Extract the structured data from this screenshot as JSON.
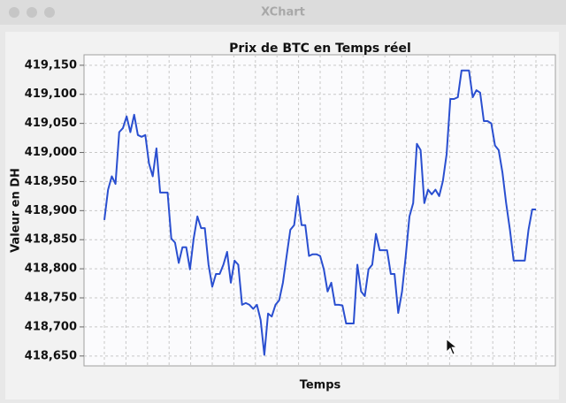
{
  "window": {
    "title": "XChart"
  },
  "chart_data": {
    "type": "line",
    "title": "Prix de BTC en Temps réel",
    "x_label": "Temps",
    "y_label": "Valeur en DH",
    "color": "#2a4fd0",
    "grid": true,
    "ylim": [
      418633,
      419168
    ],
    "yticks": [
      {
        "value": 418650,
        "label": "418,650"
      },
      {
        "value": 418700,
        "label": "418,700"
      },
      {
        "value": 418750,
        "label": "418,750"
      },
      {
        "value": 418800,
        "label": "418,800"
      },
      {
        "value": 418850,
        "label": "418,850"
      },
      {
        "value": 418900,
        "label": "418,900"
      },
      {
        "value": 418950,
        "label": "418,950"
      },
      {
        "value": 419000,
        "label": "419,000"
      },
      {
        "value": 419050,
        "label": "419,050"
      },
      {
        "value": 419100,
        "label": "419,100"
      },
      {
        "value": 419150,
        "label": "419,150"
      }
    ],
    "values": [
      418884,
      418936,
      418959,
      418946,
      419035,
      419042,
      419062,
      419035,
      419065,
      419030,
      419027,
      419030,
      418981,
      418959,
      419007,
      418931,
      418931,
      418931,
      418852,
      418845,
      418810,
      418837,
      418837,
      418799,
      418852,
      418890,
      418870,
      418870,
      418807,
      418769,
      418791,
      418791,
      418807,
      418829,
      418776,
      418814,
      418807,
      418738,
      418741,
      418738,
      418731,
      418738,
      418712,
      418652,
      418723,
      418718,
      418738,
      418746,
      418776,
      418822,
      418867,
      418875,
      418925,
      418875,
      418875,
      418822,
      418825,
      418825,
      418822,
      418799,
      418761,
      418776,
      418738,
      418738,
      418737,
      418706,
      418706,
      418706,
      418807,
      418761,
      418753,
      418799,
      418807,
      418860,
      418832,
      418832,
      418832,
      418791,
      418791,
      418724,
      418761,
      418822,
      418890,
      418913,
      419015,
      419004,
      418913,
      418936,
      418928,
      418936,
      418925,
      418951,
      418997,
      419092,
      419092,
      419095,
      419141,
      419141,
      419141,
      419095,
      419107,
      419103,
      419054,
      419054,
      419050,
      419012,
      419004,
      418966,
      418913,
      418867,
      418814,
      418814,
      418814,
      418814,
      418867,
      418902,
      418902
    ]
  }
}
